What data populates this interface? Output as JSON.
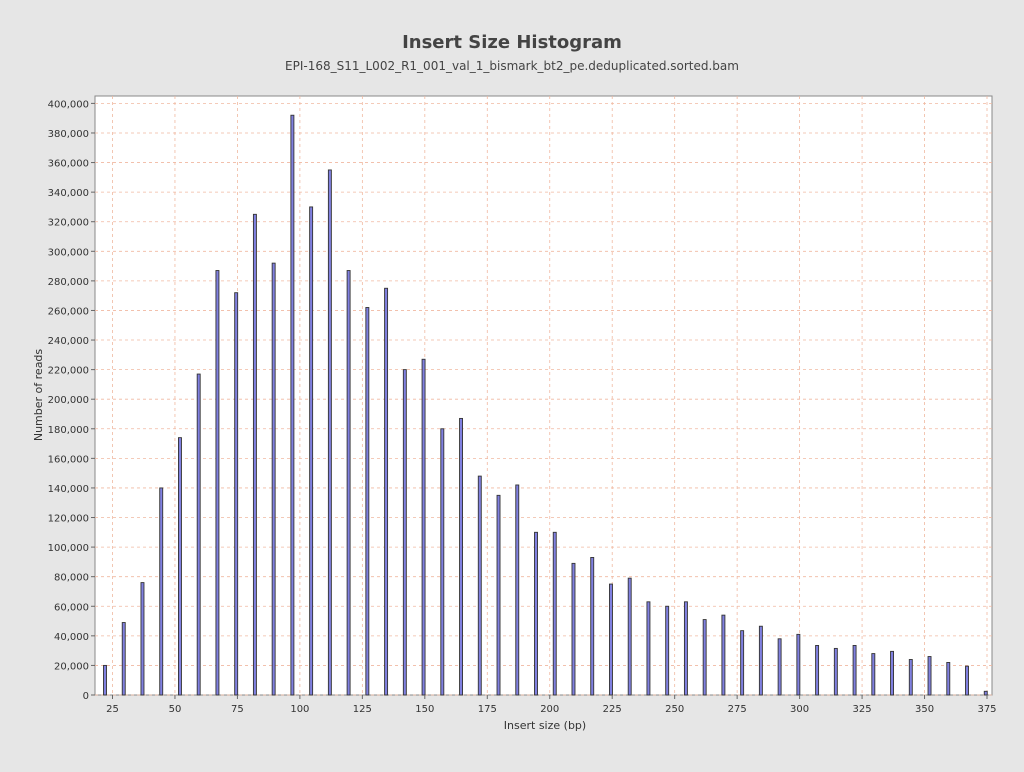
{
  "chart_data": {
    "type": "bar",
    "title": "Insert Size Histogram",
    "subtitle": "EPI-168_S11_L002_R1_001_val_1_bismark_bt2_pe.deduplicated.sorted.bam",
    "xlabel": "Insert size (bp)",
    "ylabel": "Number of reads",
    "xlim": [
      18,
      377
    ],
    "ylim": [
      0,
      405000
    ],
    "x_ticks": [
      25,
      50,
      75,
      100,
      125,
      150,
      175,
      200,
      225,
      250,
      275,
      300,
      325,
      350,
      375
    ],
    "y_ticks": [
      0,
      20000,
      40000,
      60000,
      80000,
      100000,
      120000,
      140000,
      160000,
      180000,
      200000,
      220000,
      240000,
      260000,
      280000,
      300000,
      320000,
      340000,
      360000,
      380000,
      400000
    ],
    "x_tick_labels": [
      "25",
      "50",
      "75",
      "100",
      "125",
      "150",
      "175",
      "200",
      "225",
      "250",
      "275",
      "300",
      "325",
      "350",
      "375"
    ],
    "y_tick_labels": [
      "0",
      "20,000",
      "40,000",
      "60,000",
      "80,000",
      "100,000",
      "120,000",
      "140,000",
      "160,000",
      "180,000",
      "200,000",
      "220,000",
      "240,000",
      "260,000",
      "280,000",
      "300,000",
      "320,000",
      "340,000",
      "360,000",
      "380,000",
      "400,000"
    ],
    "grid": true,
    "bar_color": "#8080e0",
    "bar_edge_color": "#333333",
    "grid_color": "#f0b8a0",
    "plot_background": "#ffffff",
    "x": [
      22,
      29.5,
      37,
      44.5,
      52,
      59.5,
      67,
      74.5,
      82,
      89.5,
      97,
      104.5,
      112,
      119.5,
      127,
      134.5,
      142,
      149.5,
      157,
      164.5,
      172,
      179.5,
      187,
      194.5,
      202,
      209.5,
      217,
      224.5,
      232,
      239.5,
      247,
      254.5,
      262,
      269.5,
      277,
      284.5,
      292,
      299.5,
      307,
      314.5,
      322,
      329.5,
      337,
      344.5,
      352,
      359.5,
      367,
      374.5
    ],
    "values": [
      20000,
      49000,
      76000,
      140000,
      174000,
      217000,
      287000,
      272000,
      325000,
      292000,
      392000,
      330000,
      355000,
      287000,
      262000,
      275000,
      220000,
      227000,
      180000,
      187000,
      148000,
      135000,
      142000,
      110000,
      110000,
      89000,
      93000,
      75000,
      79000,
      63000,
      60000,
      63000,
      51000,
      54000,
      43500,
      46500,
      38000,
      41000,
      33500,
      31500,
      33500,
      28000,
      29500,
      24000,
      26000,
      22000,
      19500,
      2500
    ]
  }
}
